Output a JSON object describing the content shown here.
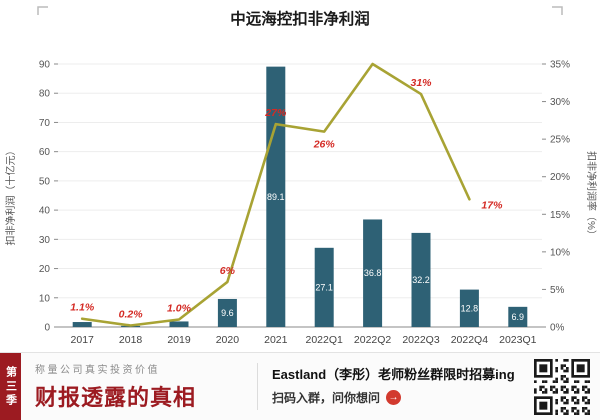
{
  "chart_data": {
    "type": "combo",
    "title": "中远海控扣非净利润",
    "categories": [
      "2017",
      "2018",
      "2019",
      "2020",
      "2021",
      "2022Q1",
      "2022Q2",
      "2022Q3",
      "2022Q4",
      "2023Q1"
    ],
    "series": [
      {
        "name": "扣非净利润",
        "type": "bar",
        "axis": "left",
        "color": "#2e6175",
        "values": [
          1.7,
          0.4,
          1.9,
          9.6,
          89.1,
          27.1,
          36.8,
          32.2,
          12.8,
          6.9
        ],
        "labels": [
          null,
          null,
          null,
          "9.6",
          "89.1",
          "27.1",
          "36.8",
          "32.2",
          "12.8",
          "6.9"
        ]
      },
      {
        "name": "扣非净利润率",
        "type": "line",
        "axis": "right",
        "color": "#a8a334",
        "values": [
          1.1,
          0.2,
          1.0,
          6,
          27,
          26,
          35,
          31,
          17,
          null
        ],
        "labels": [
          "1.1%",
          "0.2%",
          "1.0%",
          "6%",
          "27%",
          "26%",
          null,
          "31%",
          "17%",
          null
        ],
        "label_pos": [
          "above",
          "above",
          "above",
          "above",
          "above",
          "below",
          "none",
          "above",
          "right",
          "none"
        ]
      }
    ],
    "left_axis": {
      "title": "扣非净利润（十亿元）",
      "min": 0,
      "max": 90,
      "step": 10,
      "suffix": ""
    },
    "right_axis": {
      "title": "扣非净利润率（%）",
      "min": 0,
      "max": 35,
      "step": 5,
      "suffix": "%"
    },
    "label_color": "#d42a24",
    "grid": true,
    "legend": "none"
  },
  "banner": {
    "season": "第三季",
    "tagline": "称量公司真实投资价值",
    "brand": "财报透露的真相",
    "promo": "Eastland（李彤）老师粉丝群限时招募ing",
    "cta": "扫码入群，问你想问",
    "arrow": "→"
  }
}
